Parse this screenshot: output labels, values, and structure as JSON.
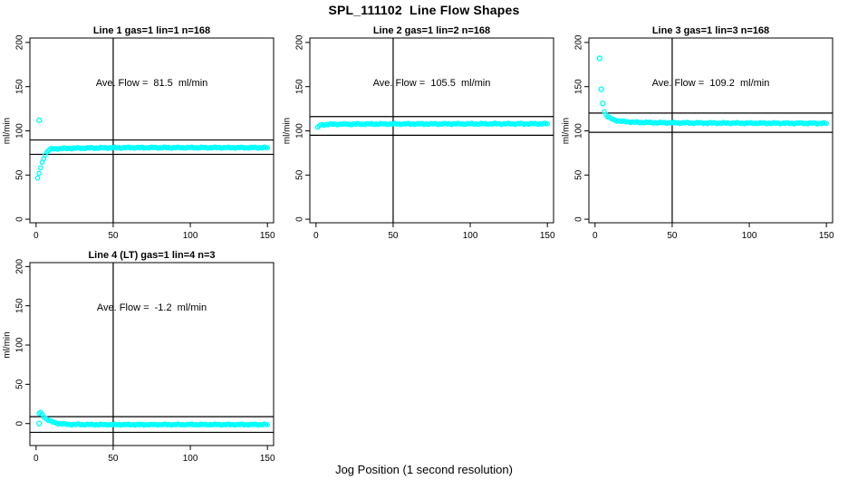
{
  "page": {
    "main_title": "SPL_111102  Line Flow Shapes",
    "xlabel": "Jog Position (1 second resolution)",
    "point_color": "#00ffff",
    "axis_color": "#000000",
    "background": "#ffffff"
  },
  "chart_data": [
    {
      "type": "scatter",
      "title": "Line 1 gas=1 lin=1 n=168",
      "n": 168,
      "ave_flow": 81.5,
      "ave_flow_label": "Ave. Flow =  81.5  ml/min",
      "ylabel": "ml/min",
      "xticks": [
        0,
        50,
        100,
        150
      ],
      "yticks": [
        0,
        50,
        100,
        150,
        200
      ],
      "xlim": [
        -4,
        154
      ],
      "ylim": [
        -4,
        205
      ],
      "vline_x": 50,
      "ref_lines": [
        89.7,
        73.4
      ],
      "outliers": [
        [
          2,
          112
        ]
      ],
      "anchors": [
        [
          1,
          46
        ],
        [
          2,
          52
        ],
        [
          3,
          58
        ],
        [
          4,
          64
        ],
        [
          5,
          69
        ],
        [
          6,
          73
        ],
        [
          7,
          76
        ],
        [
          8,
          78
        ],
        [
          10,
          79.5
        ],
        [
          15,
          80
        ],
        [
          30,
          80.5
        ],
        [
          60,
          81
        ],
        [
          150,
          81
        ]
      ],
      "x_range": [
        1,
        150
      ]
    },
    {
      "type": "scatter",
      "title": "Line 2 gas=1 lin=2 n=168",
      "n": 168,
      "ave_flow": 105.5,
      "ave_flow_label": "Ave. Flow =  105.5  ml/min",
      "ylabel": "ml/min",
      "xticks": [
        0,
        50,
        100,
        150
      ],
      "yticks": [
        0,
        50,
        100,
        150,
        200
      ],
      "xlim": [
        -4,
        154
      ],
      "ylim": [
        -4,
        205
      ],
      "vline_x": 50,
      "ref_lines": [
        116.1,
        95.0
      ],
      "outliers": [],
      "anchors": [
        [
          1,
          103.5
        ],
        [
          2,
          105.5
        ],
        [
          3,
          106.5
        ],
        [
          5,
          107
        ],
        [
          10,
          107.5
        ],
        [
          50,
          107.8
        ],
        [
          150,
          108
        ]
      ],
      "x_range": [
        1,
        150
      ]
    },
    {
      "type": "scatter",
      "title": "Line 3 gas=1 lin=3 n=168",
      "n": 168,
      "ave_flow": 109.2,
      "ave_flow_label": "Ave. Flow =  109.2  ml/min",
      "ylabel": "ml/min",
      "xticks": [
        0,
        50,
        100,
        150
      ],
      "yticks": [
        0,
        50,
        100,
        150,
        200
      ],
      "xlim": [
        -4,
        154
      ],
      "ylim": [
        -4,
        205
      ],
      "vline_x": 50,
      "ref_lines": [
        120.1,
        98.3
      ],
      "outliers": [
        [
          3,
          182
        ],
        [
          4,
          147
        ],
        [
          5,
          131
        ]
      ],
      "anchors": [
        [
          6,
          122
        ],
        [
          7,
          118.5
        ],
        [
          8,
          116.5
        ],
        [
          10,
          114
        ],
        [
          13,
          112
        ],
        [
          17,
          110.8
        ],
        [
          25,
          109.8
        ],
        [
          40,
          109.2
        ],
        [
          80,
          108.8
        ],
        [
          150,
          108.5
        ]
      ],
      "x_range": [
        6,
        150
      ]
    },
    {
      "type": "scatter",
      "title": "Line 4 (LT) gas=1 lin=4 n=3",
      "n": 3,
      "ave_flow": -1.2,
      "ave_flow_label": "Ave. Flow =  -1.2  ml/min",
      "ylabel": "ml/min",
      "xticks": [
        0,
        50,
        100,
        150
      ],
      "yticks": [
        0,
        50,
        100,
        150,
        200
      ],
      "xlim": [
        -4,
        154
      ],
      "ylim": [
        -28,
        205
      ],
      "vline_x": 50,
      "ref_lines": [
        8.8,
        -11.2
      ],
      "outliers": [
        [
          2,
          0
        ]
      ],
      "anchors": [
        [
          2,
          13
        ],
        [
          3,
          14
        ],
        [
          4,
          11.5
        ],
        [
          5,
          9
        ],
        [
          6,
          7
        ],
        [
          7,
          5.5
        ],
        [
          8,
          4.3
        ],
        [
          9,
          3.3
        ],
        [
          10,
          2.5
        ],
        [
          12,
          1.2
        ],
        [
          14,
          0.3
        ],
        [
          16,
          -0.3
        ],
        [
          20,
          -0.9
        ],
        [
          25,
          -1.2
        ],
        [
          50,
          -1.4
        ],
        [
          100,
          -1.3
        ],
        [
          150,
          -1.3
        ]
      ],
      "x_range": [
        2,
        150
      ]
    }
  ]
}
